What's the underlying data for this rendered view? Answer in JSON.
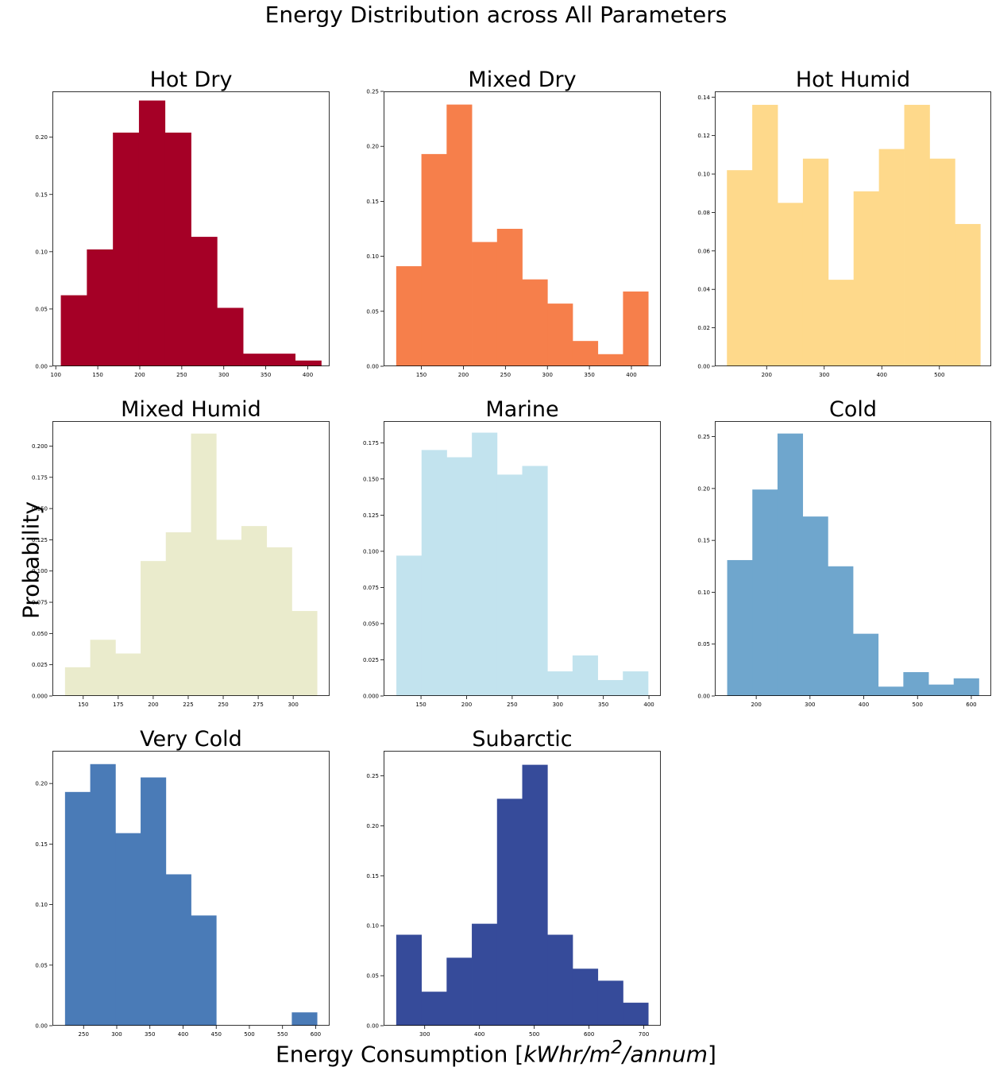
{
  "figure": {
    "suptitle": "Energy Distribution across All Parameters",
    "xlabel_prefix": "Energy Consumption [",
    "xlabel_unit": "kWhr/m",
    "xlabel_sup": "2",
    "xlabel_unit2": "/annum",
    "xlabel_suffix": "]",
    "ylabel": "Probability"
  },
  "chart_data": [
    {
      "type": "bar",
      "title": "Hot Dry",
      "color": "#a50026",
      "bin_edges": [
        106,
        137,
        168,
        199,
        230,
        261,
        292,
        323,
        354,
        385,
        416
      ],
      "values": [
        0.062,
        0.102,
        0.204,
        0.232,
        0.204,
        0.113,
        0.051,
        0.011,
        0.011,
        0.005
      ],
      "xlim": [
        96,
        426
      ],
      "ylim": [
        0,
        0.24
      ],
      "xticks": [
        100,
        150,
        200,
        250,
        300,
        350,
        400
      ],
      "yticks": [
        0.0,
        0.05,
        0.1,
        0.15,
        0.2
      ],
      "ytick_labels": [
        "0.00",
        "0.05",
        "0.10",
        "0.15",
        "0.20"
      ]
    },
    {
      "type": "bar",
      "title": "Mixed Dry",
      "color": "#f67f4b",
      "bin_edges": [
        120,
        150,
        180,
        210,
        240,
        270,
        300,
        330,
        360,
        390,
        420
      ],
      "values": [
        0.091,
        0.193,
        0.238,
        0.113,
        0.125,
        0.079,
        0.057,
        0.023,
        0.011,
        0.068
      ],
      "xlim": [
        105,
        435
      ],
      "ylim": [
        0,
        0.25
      ],
      "xticks": [
        150,
        200,
        250,
        300,
        350,
        400
      ],
      "yticks": [
        0.0,
        0.05,
        0.1,
        0.15,
        0.2,
        0.25
      ],
      "ytick_labels": [
        "0.00",
        "0.05",
        "0.10",
        "0.15",
        "0.20",
        "0.25"
      ]
    },
    {
      "type": "bar",
      "title": "Hot Humid",
      "color": "#fed98b",
      "bin_edges": [
        131,
        175,
        219,
        263,
        307,
        351,
        395,
        439,
        483,
        527,
        571
      ],
      "values": [
        0.102,
        0.136,
        0.085,
        0.108,
        0.045,
        0.091,
        0.113,
        0.136,
        0.108,
        0.074
      ],
      "xlim": [
        110,
        590
      ],
      "ylim": [
        0,
        0.143
      ],
      "xticks": [
        200,
        300,
        400,
        500
      ],
      "yticks": [
        0.0,
        0.02,
        0.04,
        0.06,
        0.08,
        0.1,
        0.12,
        0.14
      ],
      "ytick_labels": [
        "0.00",
        "0.02",
        "0.04",
        "0.06",
        "0.08",
        "0.10",
        "0.12",
        "0.14"
      ]
    },
    {
      "type": "bar",
      "title": "Mixed Humid",
      "color": "#eaebcc",
      "bin_edges": [
        137,
        155,
        173,
        191,
        209,
        227,
        245,
        263,
        281,
        299,
        317
      ],
      "values": [
        0.023,
        0.045,
        0.034,
        0.108,
        0.131,
        0.21,
        0.125,
        0.136,
        0.119,
        0.068
      ],
      "xlim": [
        128,
        326
      ],
      "ylim": [
        0,
        0.22
      ],
      "xticks": [
        150,
        175,
        200,
        225,
        250,
        275,
        300
      ],
      "yticks": [
        0.0,
        0.025,
        0.05,
        0.075,
        0.1,
        0.125,
        0.15,
        0.175,
        0.2
      ],
      "ytick_labels": [
        "0.000",
        "0.025",
        "0.050",
        "0.075",
        "0.100",
        "0.125",
        "0.150",
        "0.175",
        "0.200"
      ]
    },
    {
      "type": "bar",
      "title": "Marine",
      "color": "#c2e3ee",
      "bin_edges": [
        123,
        150.6,
        178.2,
        205.8,
        233.4,
        261,
        288.6,
        316.2,
        343.8,
        371.4,
        399
      ],
      "values": [
        0.097,
        0.17,
        0.165,
        0.182,
        0.153,
        0.159,
        0.017,
        0.028,
        0.011,
        0.017
      ],
      "xlim": [
        109,
        413
      ],
      "ylim": [
        0,
        0.19
      ],
      "xticks": [
        150,
        200,
        250,
        300,
        350,
        400
      ],
      "yticks": [
        0.0,
        0.025,
        0.05,
        0.075,
        0.1,
        0.125,
        0.15,
        0.175
      ],
      "ytick_labels": [
        "0.000",
        "0.025",
        "0.050",
        "0.075",
        "0.100",
        "0.125",
        "0.150",
        "0.175"
      ]
    },
    {
      "type": "bar",
      "title": "Cold",
      "color": "#6fa6cd",
      "bin_edges": [
        146,
        192.8,
        239.6,
        286.4,
        333.2,
        380,
        426.8,
        473.6,
        520.4,
        567.2,
        614
      ],
      "values": [
        0.131,
        0.199,
        0.253,
        0.173,
        0.125,
        0.06,
        0.009,
        0.023,
        0.011,
        0.017
      ],
      "xlim": [
        123,
        637
      ],
      "ylim": [
        0,
        0.265
      ],
      "xticks": [
        200,
        300,
        400,
        500,
        600
      ],
      "yticks": [
        0.0,
        0.05,
        0.1,
        0.15,
        0.2,
        0.25
      ],
      "ytick_labels": [
        "0.00",
        "0.05",
        "0.10",
        "0.15",
        "0.20",
        "0.25"
      ]
    },
    {
      "type": "bar",
      "title": "Very Cold",
      "color": "#4a7bb7",
      "bin_edges": [
        222,
        260,
        298,
        336,
        374,
        412,
        450,
        488,
        526,
        564,
        602
      ],
      "values": [
        0.193,
        0.216,
        0.159,
        0.205,
        0.125,
        0.091,
        0,
        0,
        0,
        0.011
      ],
      "xlim": [
        203,
        621
      ],
      "ylim": [
        0,
        0.227
      ],
      "xticks": [
        250,
        300,
        350,
        400,
        450,
        500,
        550,
        600
      ],
      "yticks": [
        0.0,
        0.05,
        0.1,
        0.15,
        0.2
      ],
      "ytick_labels": [
        "0.00",
        "0.05",
        "0.10",
        "0.15",
        "0.20"
      ]
    },
    {
      "type": "bar",
      "title": "Subarctic",
      "color": "#364b9a",
      "bin_edges": [
        248,
        294,
        340,
        386,
        432,
        478,
        524,
        570,
        616,
        662,
        708
      ],
      "values": [
        0.091,
        0.034,
        0.068,
        0.102,
        0.227,
        0.261,
        0.091,
        0.057,
        0.045,
        0.023
      ],
      "xlim": [
        225,
        731
      ],
      "ylim": [
        0,
        0.275
      ],
      "xticks": [
        300,
        400,
        500,
        600,
        700
      ],
      "yticks": [
        0.0,
        0.05,
        0.1,
        0.15,
        0.2,
        0.25
      ],
      "ytick_labels": [
        "0.00",
        "0.05",
        "0.10",
        "0.15",
        "0.20",
        "0.25"
      ]
    }
  ]
}
